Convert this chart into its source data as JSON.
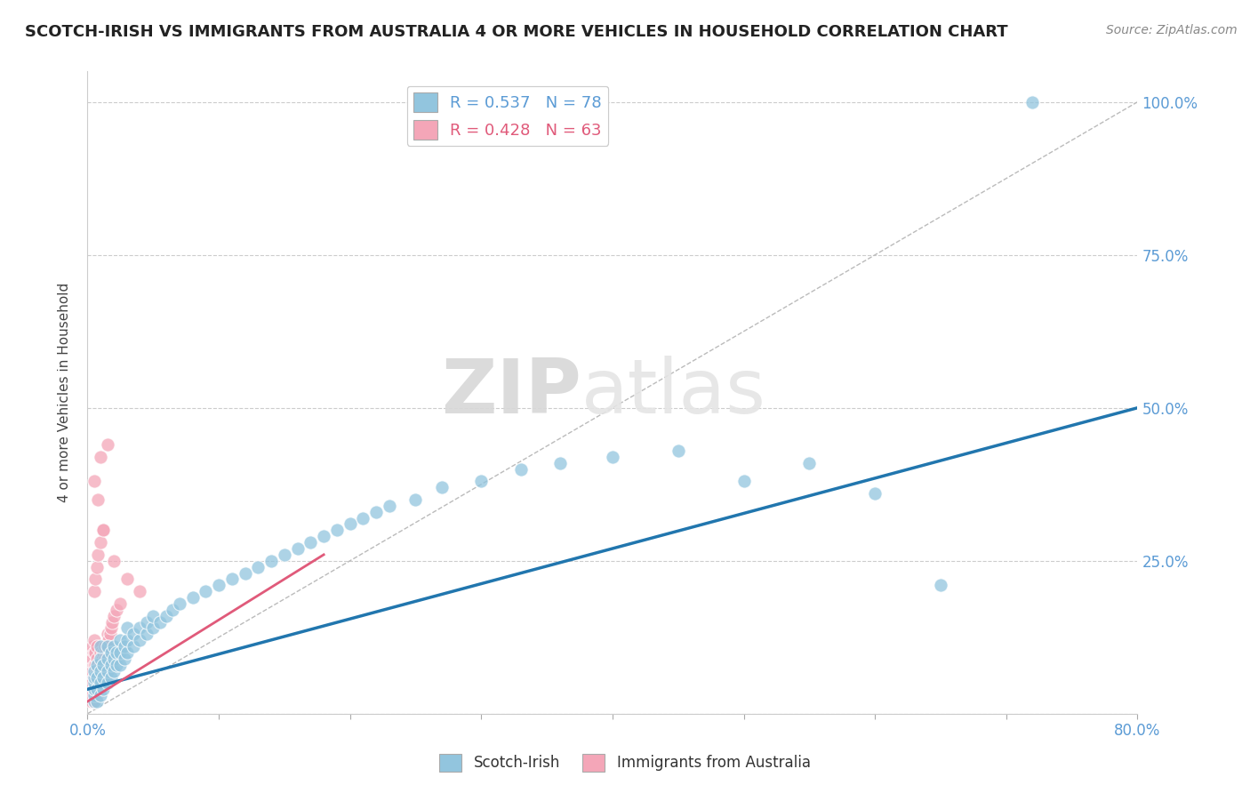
{
  "title": "SCOTCH-IRISH VS IMMIGRANTS FROM AUSTRALIA 4 OR MORE VEHICLES IN HOUSEHOLD CORRELATION CHART",
  "source": "Source: ZipAtlas.com",
  "ylabel": "4 or more Vehicles in Household",
  "x_min": 0.0,
  "x_max": 0.8,
  "y_min": 0.0,
  "y_max": 1.05,
  "x_ticks": [
    0.0,
    0.1,
    0.2,
    0.3,
    0.4,
    0.5,
    0.6,
    0.7,
    0.8
  ],
  "y_ticks": [
    0.0,
    0.25,
    0.5,
    0.75,
    1.0
  ],
  "scotch_irish_color": "#92c5de",
  "australia_color": "#f4a6b8",
  "scotch_irish_R": 0.537,
  "scotch_irish_N": 78,
  "australia_R": 0.428,
  "australia_N": 63,
  "legend_label_1": "Scotch-Irish",
  "legend_label_2": "Immigrants from Australia",
  "watermark_zip": "ZIP",
  "watermark_atlas": "atlas",
  "title_color": "#222222",
  "axis_color": "#5b9bd5",
  "grid_color": "#cccccc",
  "scotch_irish_line": {
    "x0": 0.0,
    "y0": 0.04,
    "x1": 0.8,
    "y1": 0.5
  },
  "australia_line": {
    "x0": 0.0,
    "y0": 0.02,
    "x1": 0.18,
    "y1": 0.26
  },
  "ref_line": {
    "x0": 0.0,
    "y0": 0.0,
    "x1": 0.8,
    "y1": 1.0
  },
  "scotch_irish_scatter": [
    [
      0.005,
      0.02
    ],
    [
      0.005,
      0.03
    ],
    [
      0.005,
      0.04
    ],
    [
      0.005,
      0.05
    ],
    [
      0.005,
      0.06
    ],
    [
      0.005,
      0.07
    ],
    [
      0.007,
      0.02
    ],
    [
      0.007,
      0.04
    ],
    [
      0.007,
      0.06
    ],
    [
      0.007,
      0.08
    ],
    [
      0.01,
      0.03
    ],
    [
      0.01,
      0.05
    ],
    [
      0.01,
      0.07
    ],
    [
      0.01,
      0.09
    ],
    [
      0.01,
      0.11
    ],
    [
      0.012,
      0.04
    ],
    [
      0.012,
      0.06
    ],
    [
      0.012,
      0.08
    ],
    [
      0.015,
      0.05
    ],
    [
      0.015,
      0.07
    ],
    [
      0.015,
      0.09
    ],
    [
      0.015,
      0.11
    ],
    [
      0.018,
      0.06
    ],
    [
      0.018,
      0.08
    ],
    [
      0.018,
      0.1
    ],
    [
      0.02,
      0.07
    ],
    [
      0.02,
      0.09
    ],
    [
      0.02,
      0.11
    ],
    [
      0.022,
      0.08
    ],
    [
      0.022,
      0.1
    ],
    [
      0.025,
      0.08
    ],
    [
      0.025,
      0.1
    ],
    [
      0.025,
      0.12
    ],
    [
      0.028,
      0.09
    ],
    [
      0.028,
      0.11
    ],
    [
      0.03,
      0.1
    ],
    [
      0.03,
      0.12
    ],
    [
      0.03,
      0.14
    ],
    [
      0.035,
      0.11
    ],
    [
      0.035,
      0.13
    ],
    [
      0.04,
      0.12
    ],
    [
      0.04,
      0.14
    ],
    [
      0.045,
      0.13
    ],
    [
      0.045,
      0.15
    ],
    [
      0.05,
      0.14
    ],
    [
      0.05,
      0.16
    ],
    [
      0.055,
      0.15
    ],
    [
      0.06,
      0.16
    ],
    [
      0.065,
      0.17
    ],
    [
      0.07,
      0.18
    ],
    [
      0.08,
      0.19
    ],
    [
      0.09,
      0.2
    ],
    [
      0.1,
      0.21
    ],
    [
      0.11,
      0.22
    ],
    [
      0.12,
      0.23
    ],
    [
      0.13,
      0.24
    ],
    [
      0.14,
      0.25
    ],
    [
      0.15,
      0.26
    ],
    [
      0.16,
      0.27
    ],
    [
      0.17,
      0.28
    ],
    [
      0.18,
      0.29
    ],
    [
      0.19,
      0.3
    ],
    [
      0.2,
      0.31
    ],
    [
      0.21,
      0.32
    ],
    [
      0.22,
      0.33
    ],
    [
      0.23,
      0.34
    ],
    [
      0.25,
      0.35
    ],
    [
      0.27,
      0.37
    ],
    [
      0.3,
      0.38
    ],
    [
      0.33,
      0.4
    ],
    [
      0.36,
      0.41
    ],
    [
      0.4,
      0.42
    ],
    [
      0.45,
      0.43
    ],
    [
      0.5,
      0.38
    ],
    [
      0.55,
      0.41
    ],
    [
      0.6,
      0.36
    ],
    [
      0.65,
      0.21
    ],
    [
      0.72,
      1.0
    ]
  ],
  "australia_scatter": [
    [
      0.003,
      0.02
    ],
    [
      0.003,
      0.04
    ],
    [
      0.003,
      0.06
    ],
    [
      0.003,
      0.08
    ],
    [
      0.003,
      0.1
    ],
    [
      0.004,
      0.03
    ],
    [
      0.004,
      0.05
    ],
    [
      0.004,
      0.07
    ],
    [
      0.004,
      0.09
    ],
    [
      0.004,
      0.11
    ],
    [
      0.005,
      0.02
    ],
    [
      0.005,
      0.04
    ],
    [
      0.005,
      0.06
    ],
    [
      0.005,
      0.08
    ],
    [
      0.005,
      0.1
    ],
    [
      0.005,
      0.12
    ],
    [
      0.006,
      0.04
    ],
    [
      0.006,
      0.06
    ],
    [
      0.006,
      0.08
    ],
    [
      0.006,
      0.1
    ],
    [
      0.007,
      0.03
    ],
    [
      0.007,
      0.05
    ],
    [
      0.007,
      0.07
    ],
    [
      0.007,
      0.09
    ],
    [
      0.007,
      0.11
    ],
    [
      0.008,
      0.04
    ],
    [
      0.008,
      0.06
    ],
    [
      0.008,
      0.08
    ],
    [
      0.009,
      0.05
    ],
    [
      0.009,
      0.07
    ],
    [
      0.01,
      0.06
    ],
    [
      0.01,
      0.08
    ],
    [
      0.01,
      0.1
    ],
    [
      0.011,
      0.07
    ],
    [
      0.011,
      0.09
    ],
    [
      0.012,
      0.08
    ],
    [
      0.012,
      0.1
    ],
    [
      0.013,
      0.09
    ],
    [
      0.013,
      0.11
    ],
    [
      0.014,
      0.1
    ],
    [
      0.015,
      0.11
    ],
    [
      0.015,
      0.13
    ],
    [
      0.016,
      0.12
    ],
    [
      0.017,
      0.13
    ],
    [
      0.018,
      0.14
    ],
    [
      0.019,
      0.15
    ],
    [
      0.02,
      0.16
    ],
    [
      0.022,
      0.17
    ],
    [
      0.025,
      0.18
    ],
    [
      0.005,
      0.38
    ],
    [
      0.01,
      0.42
    ],
    [
      0.008,
      0.35
    ],
    [
      0.015,
      0.44
    ],
    [
      0.012,
      0.3
    ],
    [
      0.02,
      0.25
    ],
    [
      0.03,
      0.22
    ],
    [
      0.04,
      0.2
    ],
    [
      0.005,
      0.2
    ],
    [
      0.006,
      0.22
    ],
    [
      0.007,
      0.24
    ],
    [
      0.008,
      0.26
    ],
    [
      0.01,
      0.28
    ],
    [
      0.012,
      0.3
    ]
  ]
}
